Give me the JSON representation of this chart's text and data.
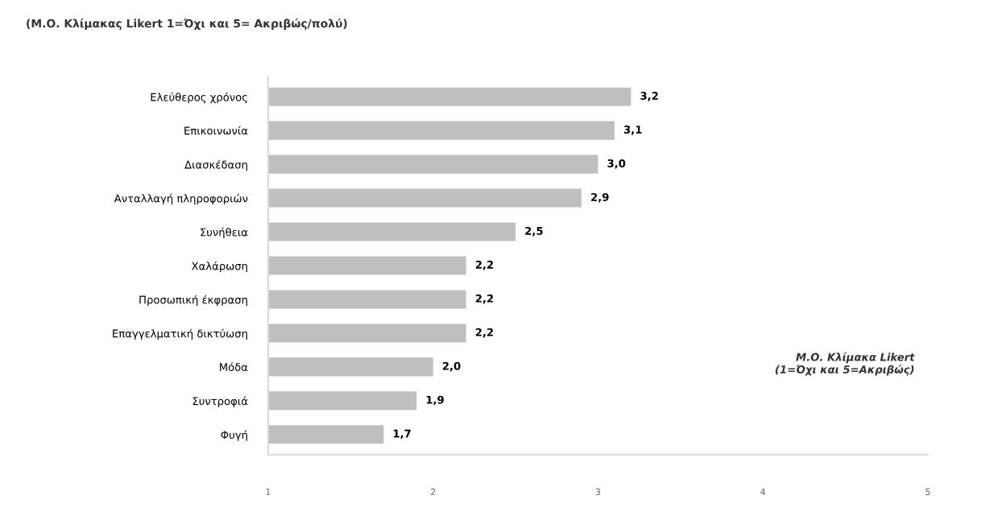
{
  "chart_data": {
    "type": "bar",
    "orientation": "horizontal",
    "title": "(Μ.Ο. Κλίμακας Likert 1=Όχι και 5= Ακριβώς/πολύ)",
    "categories": [
      "Ελεύθερος χρόνος",
      "Επικοινωνία",
      "Διασκέδαση",
      "Ανταλλαγή πληροφοριών",
      "Συνήθεια",
      "Χαλάρωση",
      "Προσωπική έκφραση",
      "Επαγγελματική δικτύωση",
      "Μόδα",
      "Συντροφιά",
      "Φυγή"
    ],
    "values": [
      3.2,
      3.1,
      3.0,
      2.9,
      2.5,
      2.2,
      2.2,
      2.2,
      2.0,
      1.9,
      1.7
    ],
    "value_labels": [
      "3,2",
      "3,1",
      "3,0",
      "2,9",
      "2,5",
      "2,2",
      "2,2",
      "2,2",
      "2,0",
      "1,9",
      "1,7"
    ],
    "color": "#bfbfbf",
    "xlim": [
      1,
      5
    ],
    "xticks": [
      1,
      2,
      3,
      4,
      5
    ],
    "grid": false,
    "legend": false,
    "annotations": [
      "Μ.Ο. Κλίμακα Likert\n(1=Όχι και 5=Ακριβώς)"
    ]
  }
}
